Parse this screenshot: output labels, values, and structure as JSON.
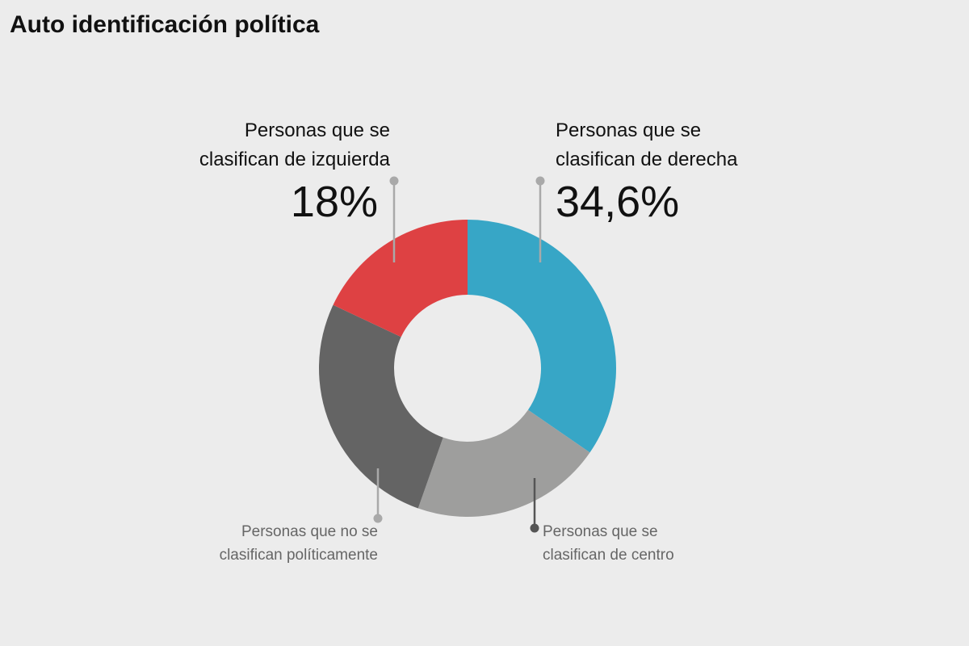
{
  "title": "Auto identificación política",
  "chart_data": {
    "type": "pie",
    "variant": "donut",
    "title": "Auto identificación política",
    "slices": [
      {
        "name": "Personas que se clasifican de derecha",
        "label_lines": [
          "Personas que se",
          "clasifican de derecha"
        ],
        "value": 34.6,
        "value_label": "34,6%",
        "color": "#37a6c6"
      },
      {
        "name": "Personas que se clasifican de centro",
        "label_lines": [
          "Personas que se",
          "clasifican de centro"
        ],
        "value": 20.8,
        "value_label": "",
        "color": "#9e9e9d"
      },
      {
        "name": "Personas que no se clasifican políticamente",
        "label_lines": [
          "Personas que no se",
          "clasifican políticamente"
        ],
        "value": 26.6,
        "value_label": "",
        "color": "#646464"
      },
      {
        "name": "Personas que se clasifican de izquierda",
        "label_lines": [
          "Personas que se",
          "clasifican de izquierda"
        ],
        "value": 18.0,
        "value_label": "18%",
        "color": "#de4143"
      }
    ]
  }
}
